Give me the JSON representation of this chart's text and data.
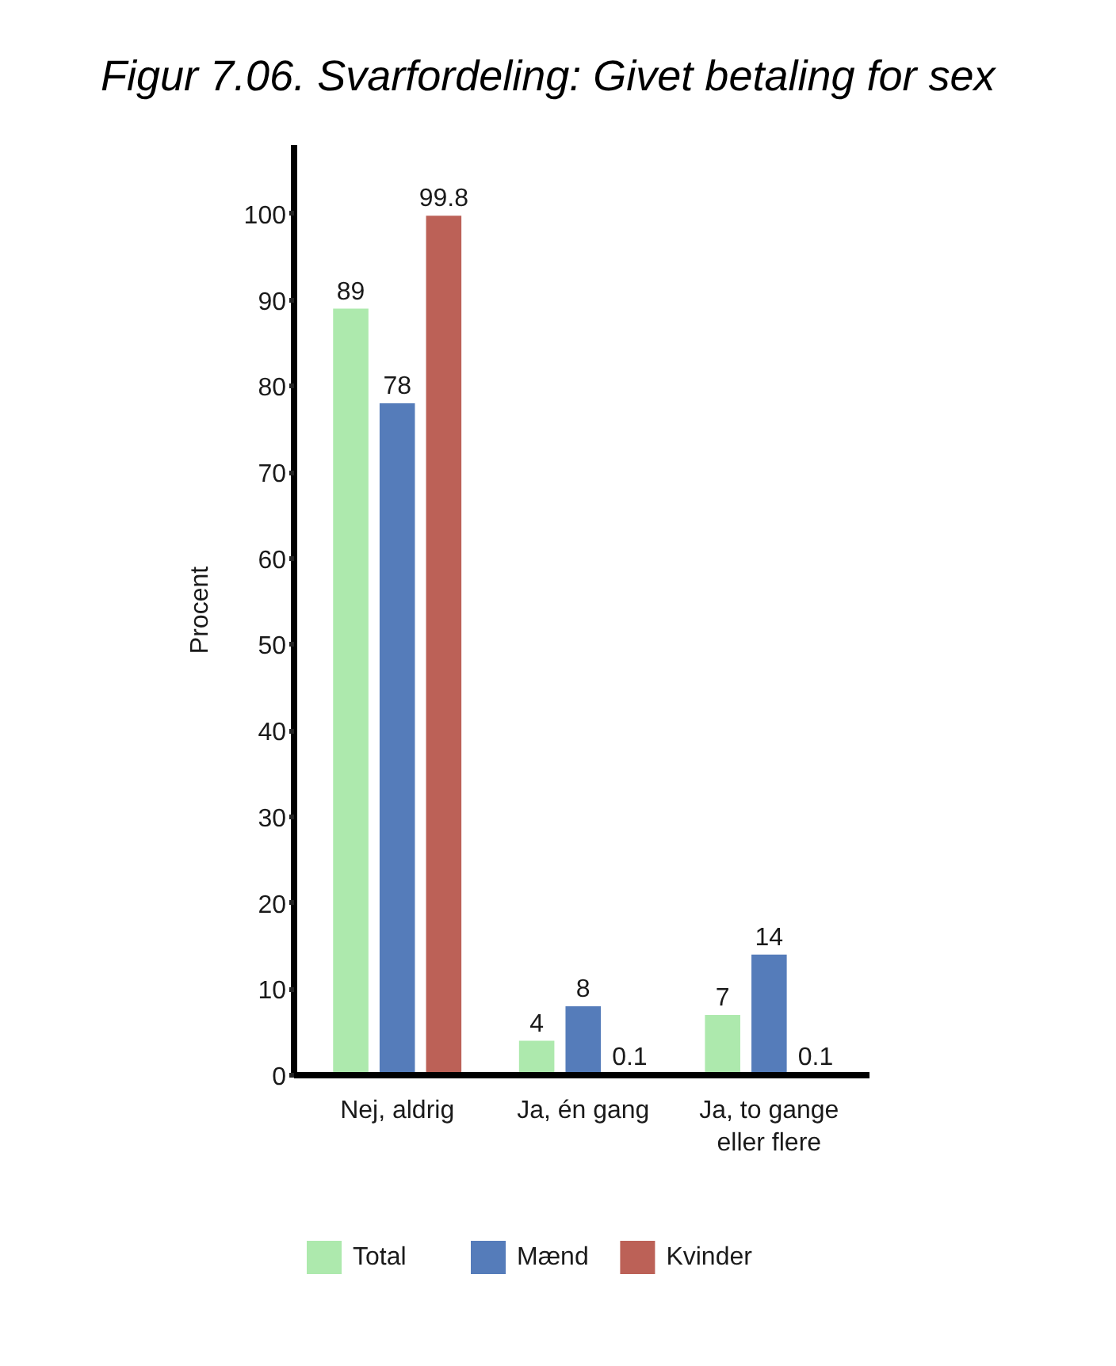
{
  "chart_data": {
    "type": "bar",
    "title": "Figur 7.06. Svarfordeling: Givet betaling for sex",
    "ylabel": "Procent",
    "categories": [
      "Nej, aldrig",
      "Ja, én gang",
      "Ja, to gange eller flere"
    ],
    "series": [
      {
        "name": "Total",
        "color": "#ade9ad",
        "values": [
          89,
          4,
          7
        ]
      },
      {
        "name": "Mænd",
        "color": "#557cba",
        "values": [
          78,
          8,
          14
        ]
      },
      {
        "name": "Kvinder",
        "color": "#bc6157",
        "values": [
          99.8,
          0.1,
          0.1
        ]
      }
    ],
    "ylim": [
      0,
      108
    ],
    "yticks": [
      0,
      10,
      20,
      30,
      40,
      50,
      60,
      70,
      80,
      90,
      100
    ],
    "data_labels": true,
    "legend": "bottom",
    "grid": false
  }
}
